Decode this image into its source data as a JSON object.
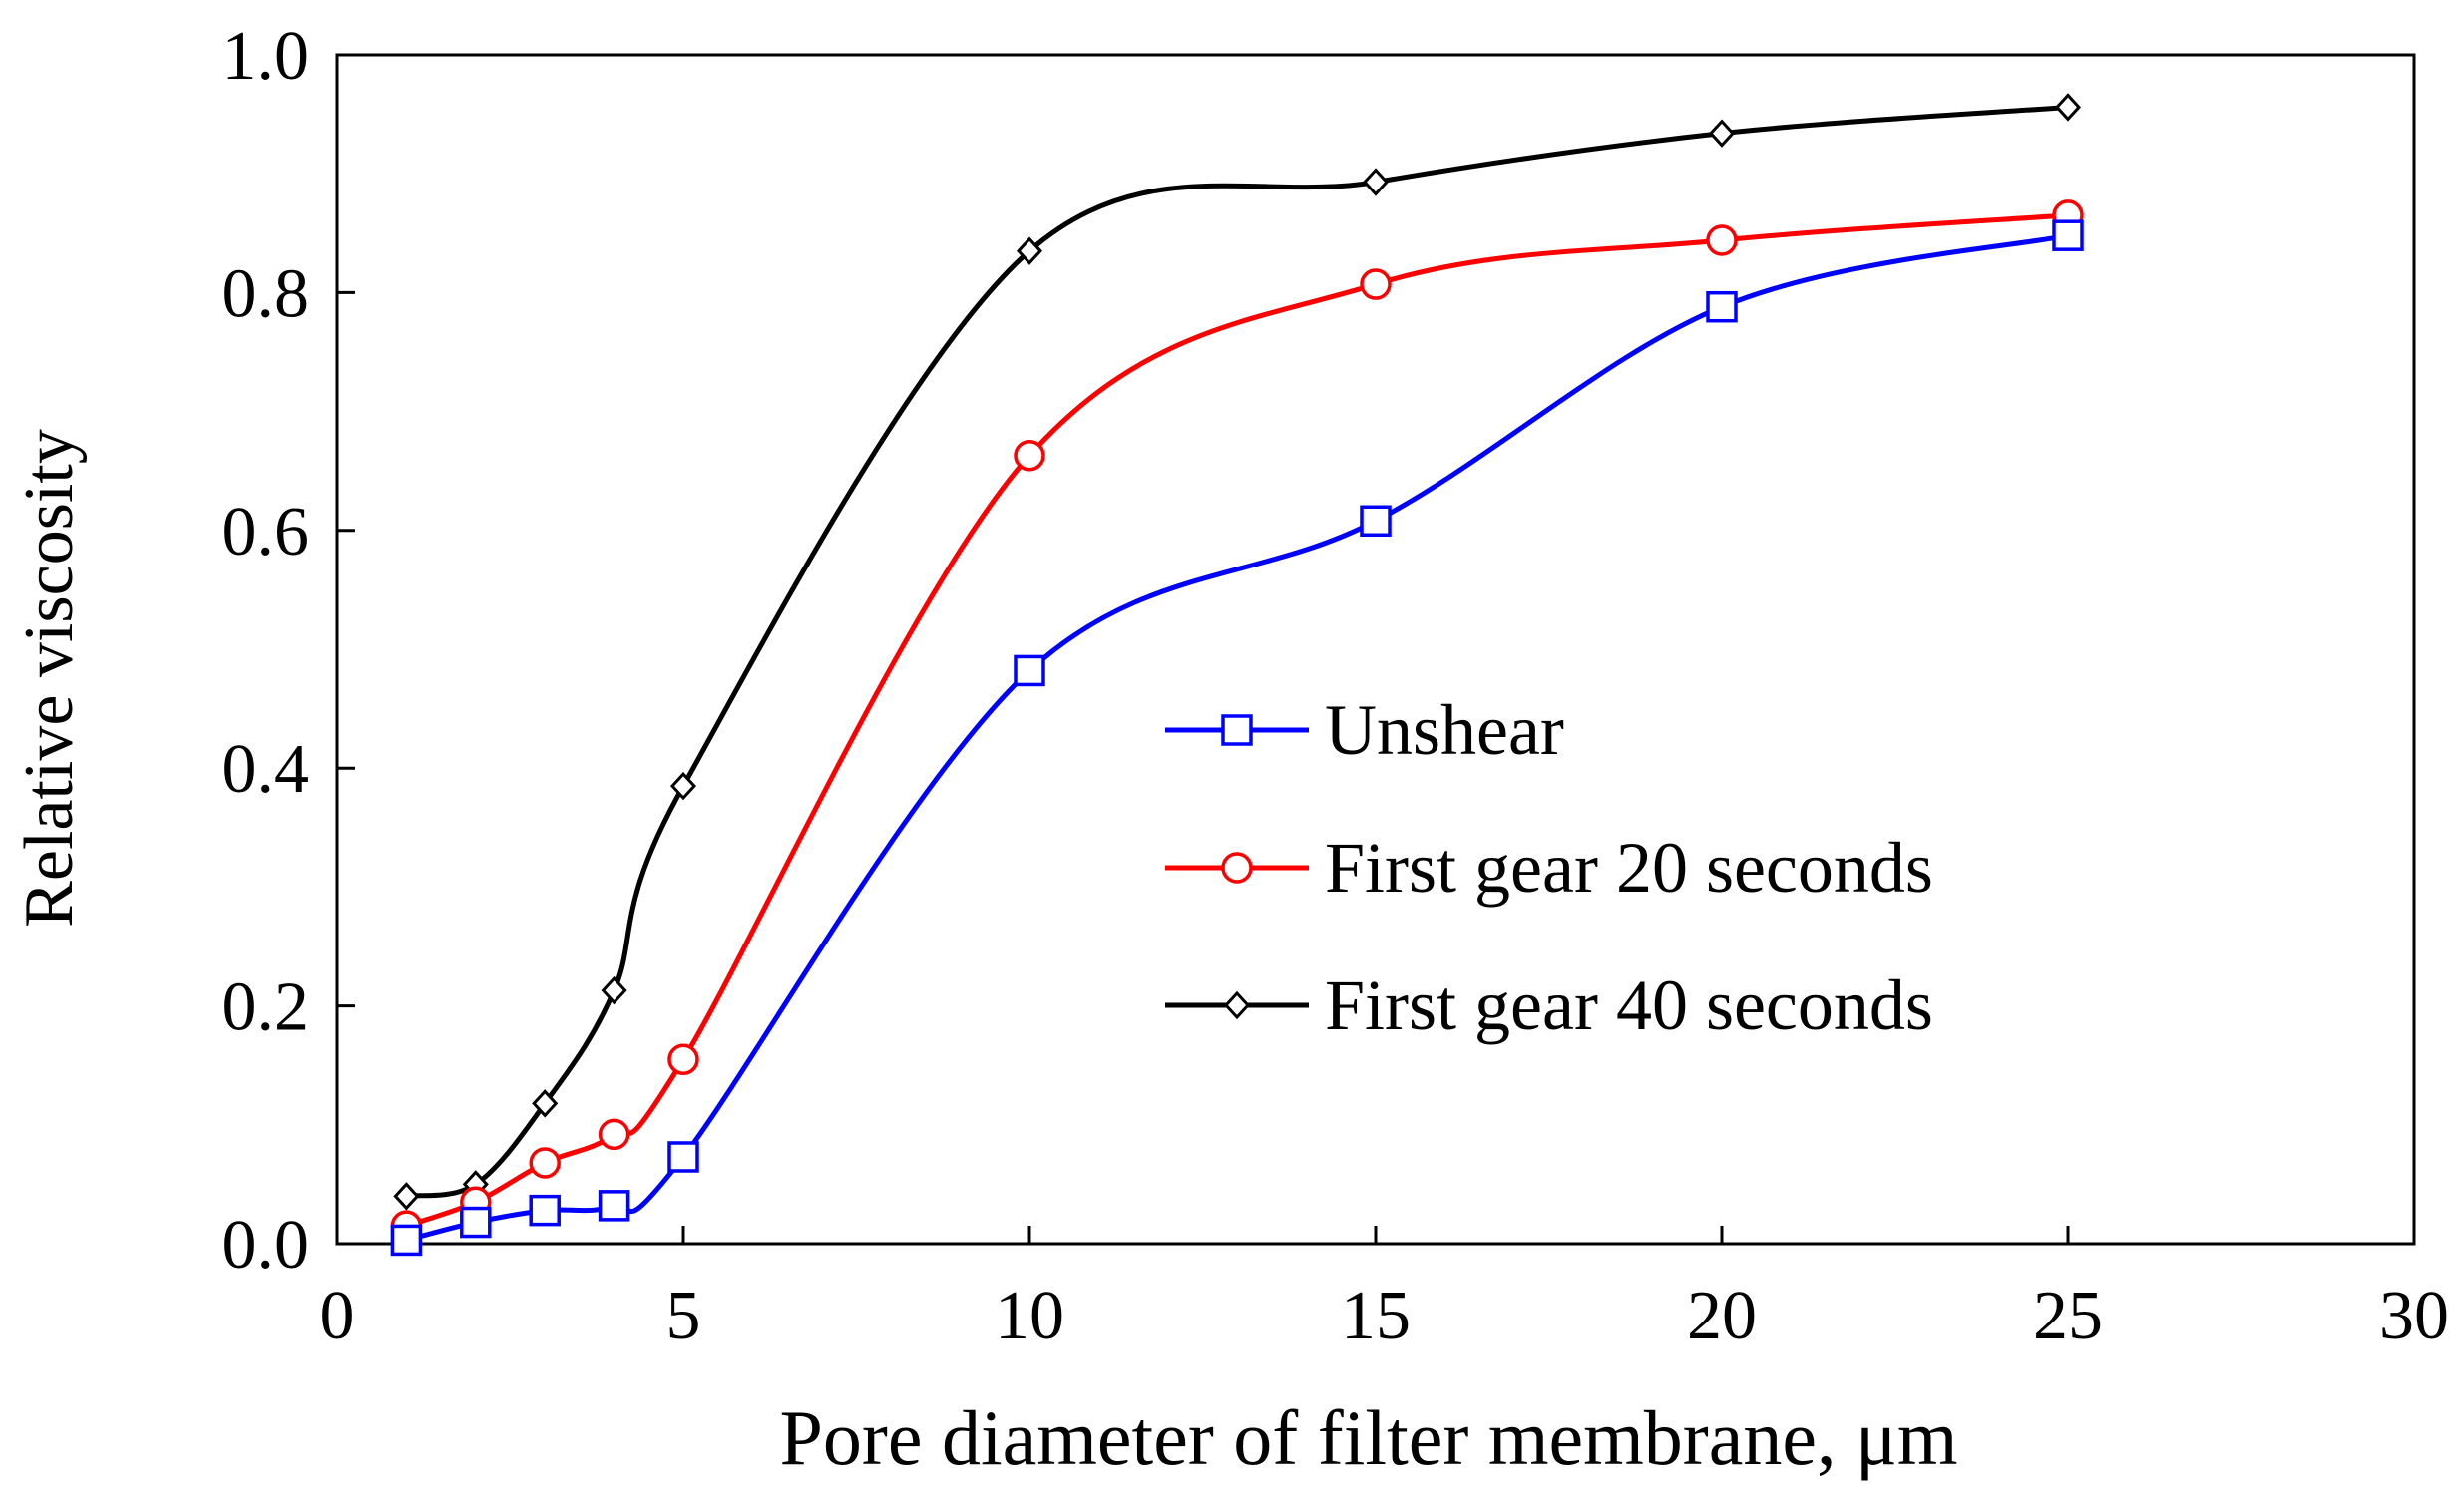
{
  "chart_data": {
    "type": "line",
    "title": "",
    "xlabel": "Pore diameter of filter membrane, μm",
    "ylabel": "Relative viscosity",
    "xlim": [
      0,
      30
    ],
    "ylim": [
      0,
      1.0
    ],
    "xticks": [
      0,
      5,
      10,
      15,
      20,
      25,
      30
    ],
    "yticks": [
      0.0,
      0.2,
      0.4,
      0.6,
      0.8,
      1.0
    ],
    "xtick_labels": [
      "0",
      "5",
      "10",
      "15",
      "20",
      "25",
      "30"
    ],
    "ytick_labels": [
      "0.0",
      "0.2",
      "0.4",
      "0.6",
      "0.8",
      "1.0"
    ],
    "grid": false,
    "legend_position": "center-right",
    "x": [
      1,
      2,
      3,
      4,
      5,
      10,
      15,
      20,
      25
    ],
    "series": [
      {
        "name": "Unshear",
        "color": "#0000ff",
        "marker": "square",
        "values": [
          0.003,
          0.018,
          0.028,
          0.032,
          0.073,
          0.482,
          0.608,
          0.788,
          0.848
        ]
      },
      {
        "name": "First gear 20 seconds",
        "color": "#ff0000",
        "marker": "circle",
        "values": [
          0.015,
          0.035,
          0.068,
          0.092,
          0.155,
          0.663,
          0.807,
          0.844,
          0.865
        ]
      },
      {
        "name": "First gear 40 seconds",
        "color": "#000000",
        "marker": "diamond",
        "values": [
          0.04,
          0.05,
          0.118,
          0.213,
          0.385,
          0.835,
          0.893,
          0.934,
          0.956
        ]
      }
    ]
  }
}
